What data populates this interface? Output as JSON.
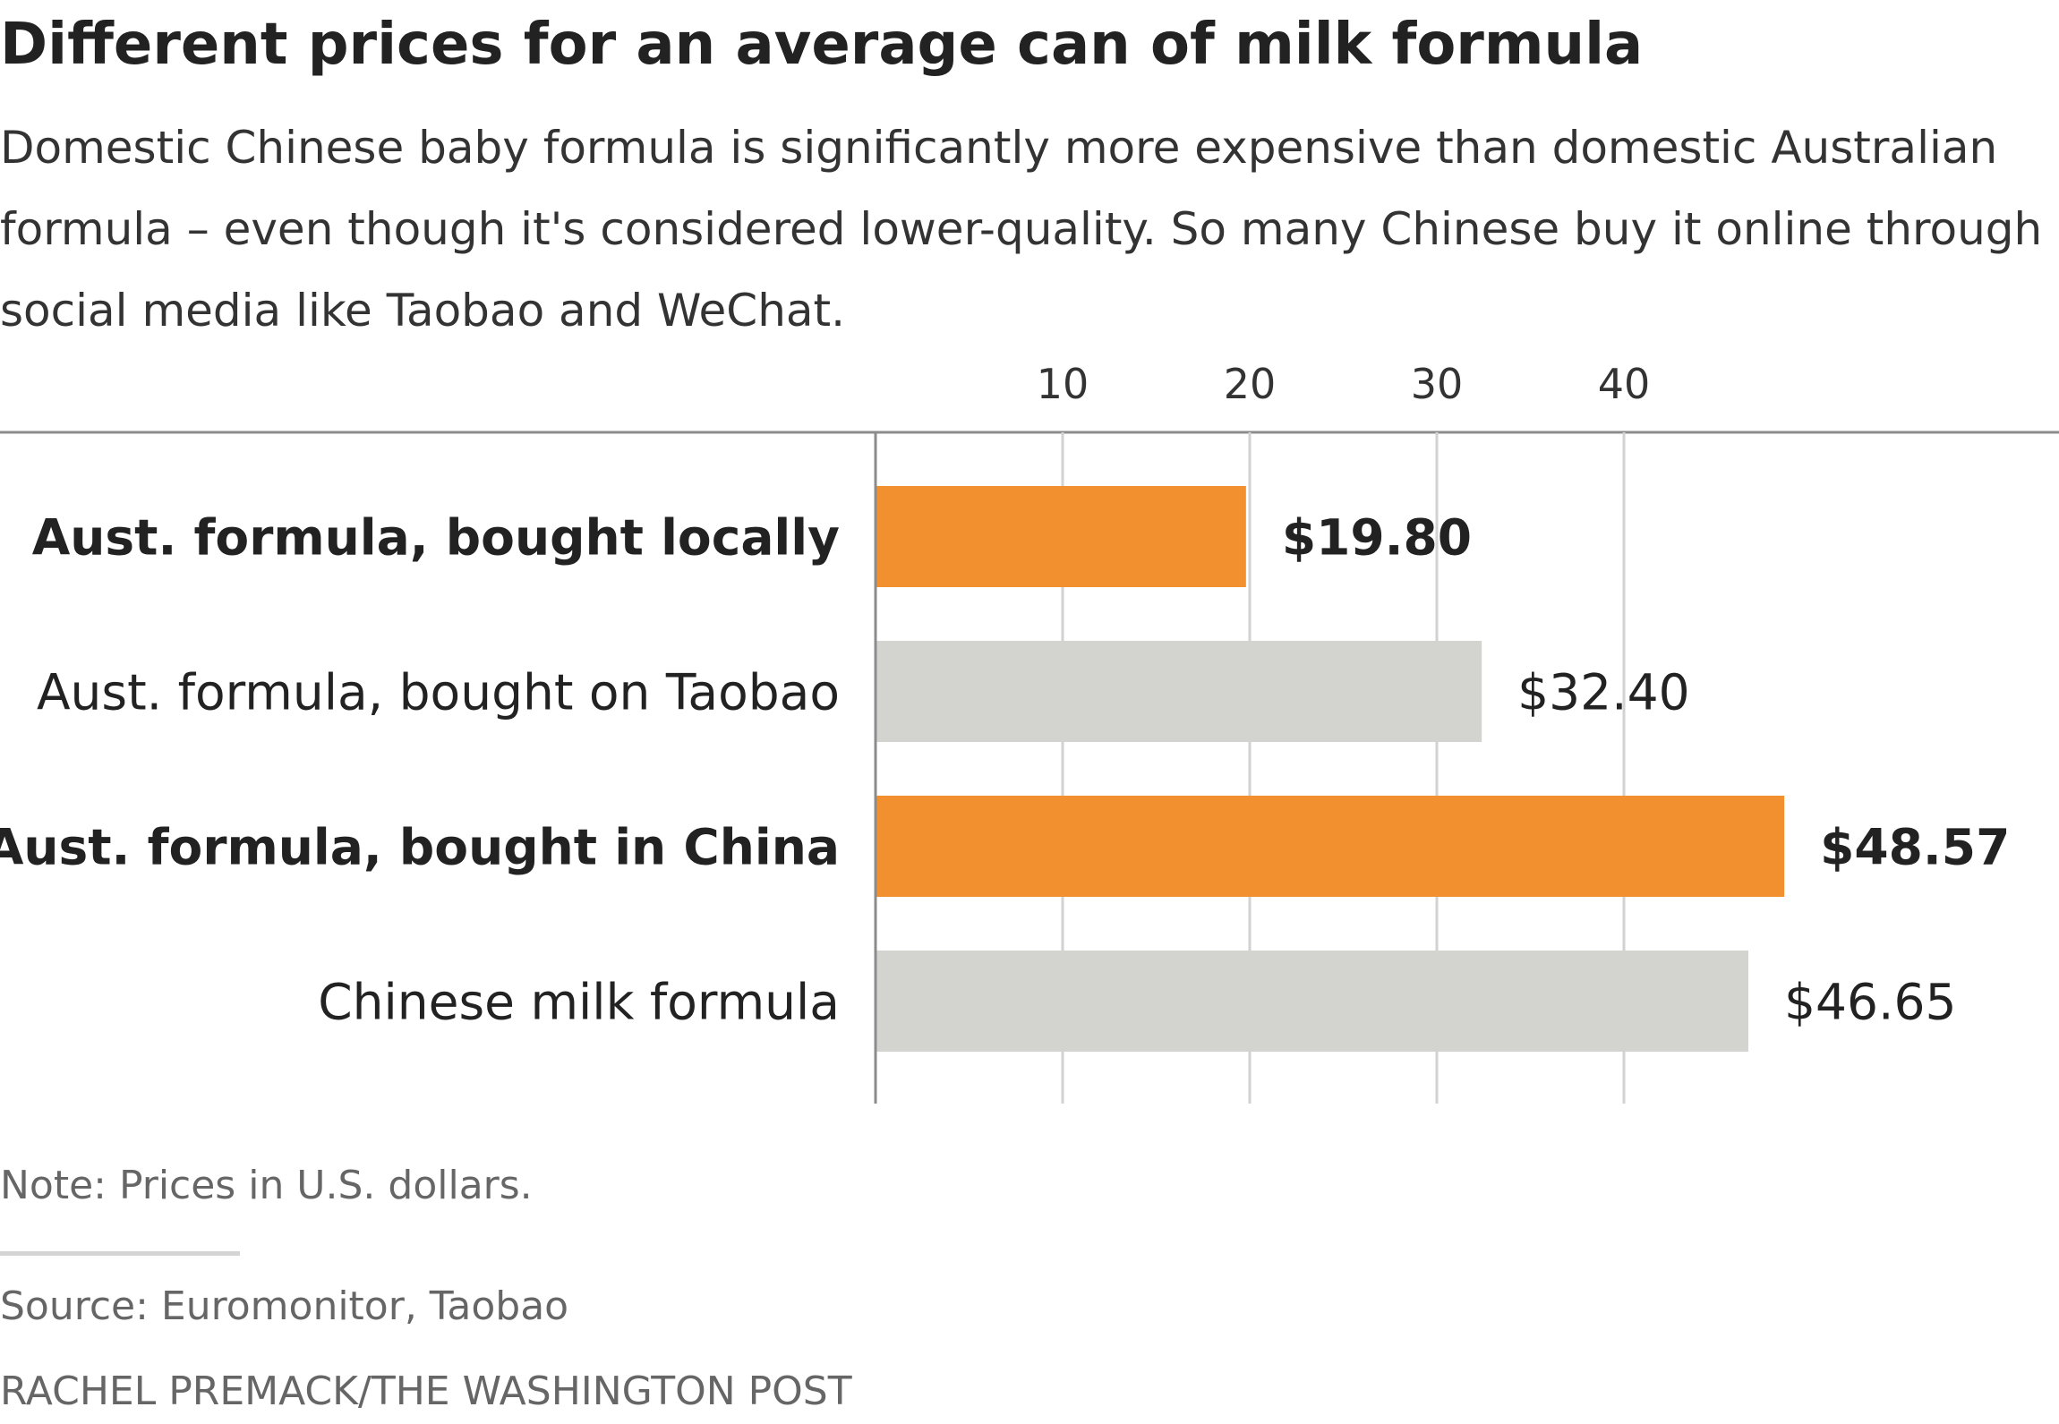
{
  "title": "Different prices for an average can of milk formula",
  "subtitle": "Domestic Chinese baby formula is significantly more expensive than domestic Australian formula – even though it's considered lower-quality. So many Chinese buy it online through social media like Taobao and WeChat.",
  "note": "Note: Prices in U.S. dollars.",
  "source": "Source: Euromonitor, Taobao",
  "credit": "RACHEL PREMACK/THE WASHINGTON POST",
  "colors": {
    "highlight": "#f28f2e",
    "default": "#d3d3cf",
    "gridline": "#d2d2d2",
    "axis": "#8c8c8c"
  },
  "chart_data": {
    "type": "bar",
    "orientation": "horizontal",
    "categories": [
      "Aust. formula, bought locally",
      "Aust. formula, bought on Taobao",
      "Aust. formula, bought in China",
      "Chinese milk formula"
    ],
    "values": [
      19.8,
      32.4,
      48.57,
      46.65
    ],
    "value_labels": [
      "$19.80",
      "$32.40",
      "$48.57",
      "$46.65"
    ],
    "highlighted": [
      true,
      false,
      true,
      false
    ],
    "xticks": [
      10,
      20,
      30,
      40
    ],
    "xlim": [
      0,
      50
    ],
    "xlabel": "",
    "ylabel": "",
    "grid": true,
    "legend": "none"
  }
}
